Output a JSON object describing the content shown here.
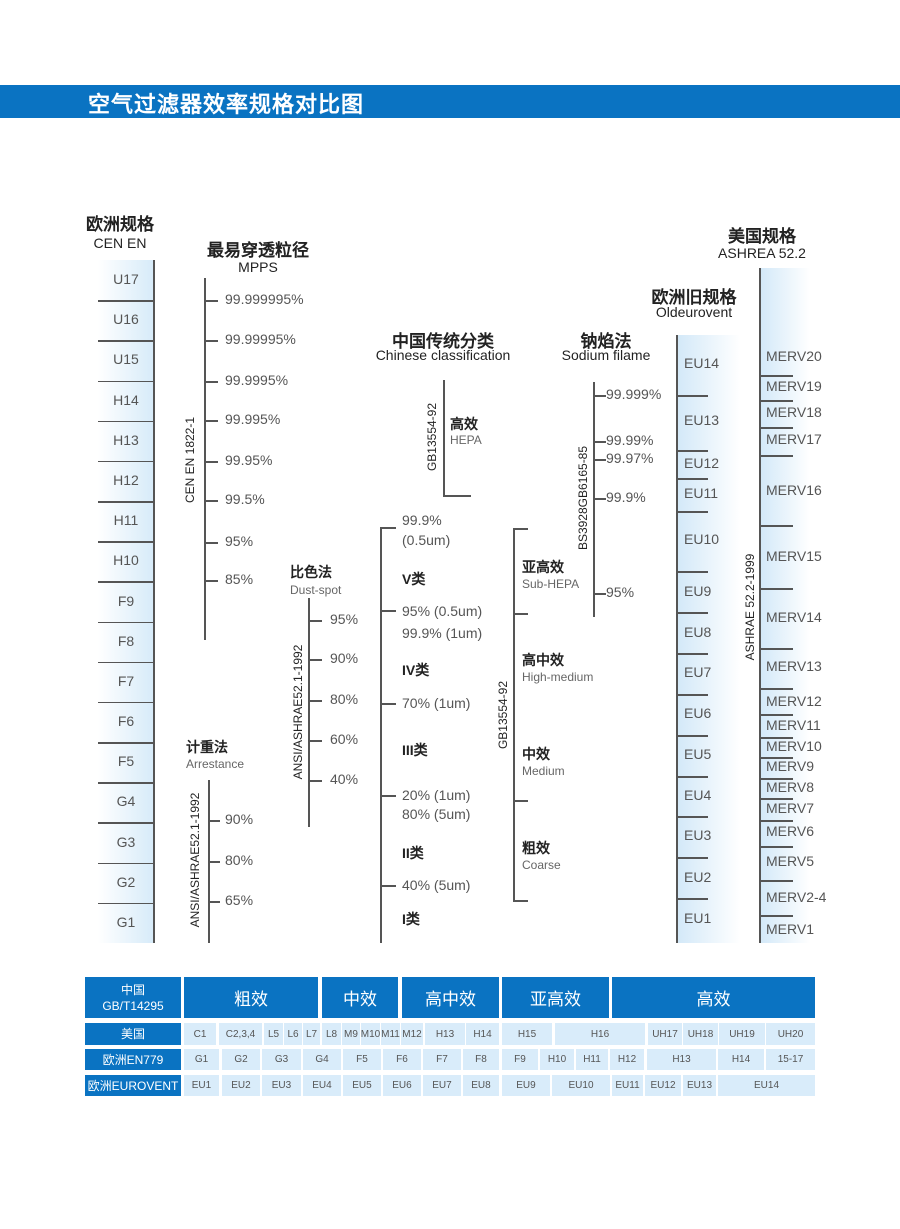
{
  "header": {
    "title": "空气过滤器效率规格对比图"
  },
  "cen_en": {
    "title_cn": "欧洲规格",
    "title_en": "CEN EN",
    "grades": [
      "U17",
      "U16",
      "U15",
      "H14",
      "H13",
      "H12",
      "H11",
      "H10",
      "F9",
      "F8",
      "F7",
      "F6",
      "F5",
      "G4",
      "G3",
      "G2",
      "G1"
    ]
  },
  "mpps": {
    "title_cn": "最易穿透粒径",
    "title_en": "MPPS",
    "standard": "CEN EN 1822-1",
    "values": [
      "99.999995%",
      "99.99995%",
      "99.9995%",
      "99.995%",
      "99.95%",
      "99.5%",
      "95%",
      "85%"
    ]
  },
  "dust_spot": {
    "title_cn": "比色法",
    "title_en": "Dust-spot",
    "standard": "ANSI/ASHRAE52.1-1992",
    "values": [
      "95%",
      "90%",
      "80%",
      "60%",
      "40%"
    ]
  },
  "arrestance": {
    "title_cn": "计重法",
    "title_en": "Arrestance",
    "standard": "ANSI/ASHRAE52.1-1992",
    "values": [
      "90%",
      "80%",
      "65%"
    ]
  },
  "chinese": {
    "title_cn": "中国传统分类",
    "title_en": "Chinese classification",
    "hepa_standard": "GB13554-92",
    "hepa_cn": "高效",
    "hepa_en": "HEPA",
    "labels": [
      "99.9%",
      "(0.5um)",
      "V类",
      "95% (0.5um)",
      "99.9% (1um)",
      "IV类",
      "70% (1um)",
      "III类",
      "20% (1um)",
      "80% (5um)",
      "II类",
      "40% (5um)",
      "I类"
    ],
    "gb_standard": "GB13554-92",
    "groups": [
      {
        "cn": "亚高效",
        "en": "Sub-HEPA"
      },
      {
        "cn": "高中效",
        "en": "High-medium"
      },
      {
        "cn": "中效",
        "en": "Medium"
      },
      {
        "cn": "粗效",
        "en": "Coarse"
      }
    ]
  },
  "sodium": {
    "title_cn": "钠焰法",
    "title_en": "Sodium filame",
    "standard": "BS3928GB6165-85",
    "values": [
      "99.999%",
      "99.99%",
      "99.97%",
      "99.9%",
      "95%"
    ]
  },
  "oldeurovent": {
    "title_cn": "欧洲旧规格",
    "title_en": "Oldeurovent",
    "grades": [
      "EU14",
      "EU13",
      "EU12",
      "EU11",
      "EU10",
      "EU9",
      "EU8",
      "EU7",
      "EU6",
      "EU5",
      "EU4",
      "EU3",
      "EU2",
      "EU1"
    ]
  },
  "ashrae": {
    "title_cn": "美国规格",
    "title_en": "ASHREA 52.2",
    "standard": "ASHRAE 52.2-1999",
    "grades": [
      "MERV20",
      "MERV19",
      "MERV18",
      "MERV17",
      "MERV16",
      "MERV15",
      "MERV14",
      "MERV13",
      "MERV12",
      "MERV11",
      "MERV10",
      "MERV9",
      "MERV8",
      "MERV7",
      "MERV6",
      "MERV5",
      "MERV2-4",
      "MERV1"
    ]
  },
  "table": {
    "header_label": "中国\nGB/T14295",
    "header": [
      "粗效",
      "中效",
      "高中效",
      "亚高效",
      "高效"
    ],
    "rows": [
      {
        "label": "美国",
        "cells": [
          "C1",
          "C2,3,4",
          "L5",
          "L6",
          "L7",
          "L8",
          "M9",
          "M10",
          "M11",
          "M12",
          "H13",
          "H14",
          "H15",
          "H16",
          "UH17",
          "UH18",
          "UH19",
          "UH20"
        ]
      },
      {
        "label": "欧洲EN779",
        "cells": [
          "G1",
          "G2",
          "G3",
          "G4",
          "F5",
          "F6",
          "F7",
          "F8",
          "F9",
          "H10",
          "H11",
          "H12",
          "H13",
          "H14",
          "15-17"
        ]
      },
      {
        "label": "欧洲EUROVENT",
        "cells": [
          "EU1",
          "EU2",
          "EU3",
          "EU4",
          "EU5",
          "EU6",
          "EU7",
          "EU8",
          "EU9",
          "EU10",
          "EU11",
          "EU12",
          "EU13",
          "EU14"
        ]
      }
    ]
  },
  "colors": {
    "brand_blue": "#0a73c2",
    "cell_blue": "#d9ecfa"
  }
}
